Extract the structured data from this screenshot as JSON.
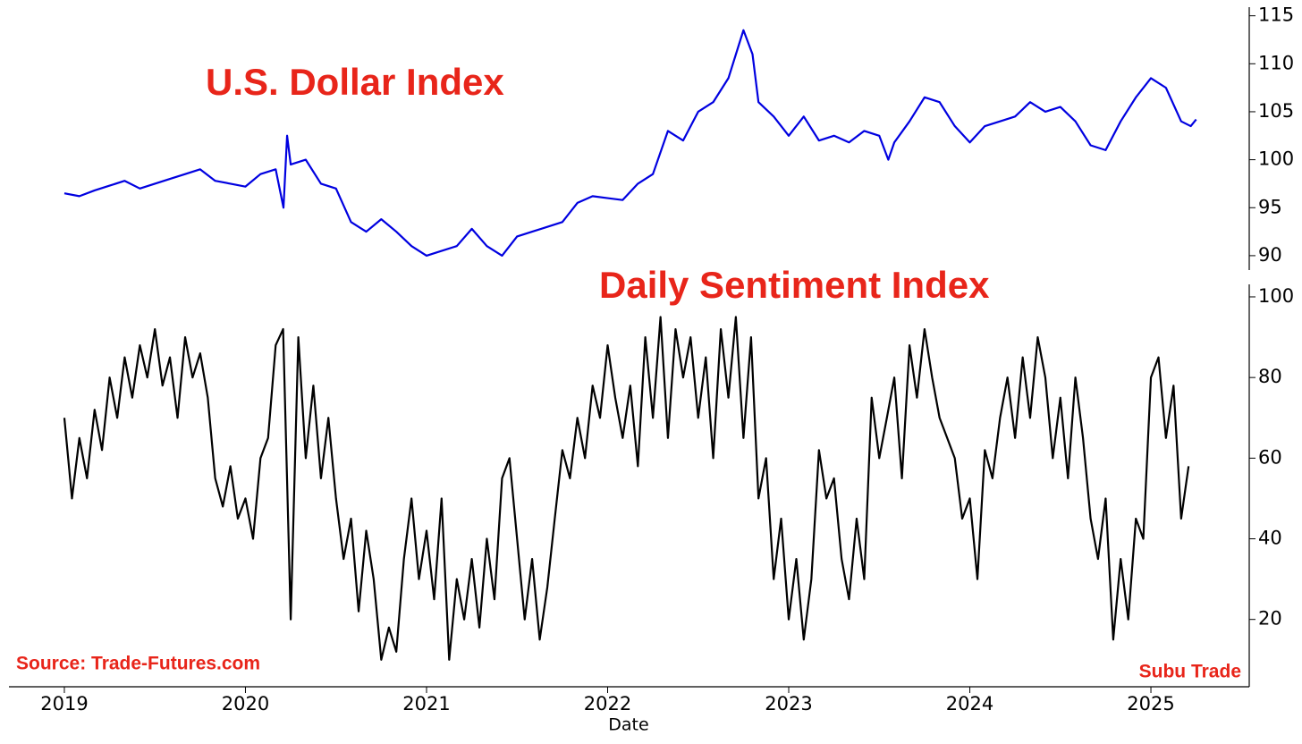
{
  "chart_data": [
    {
      "type": "line",
      "title": "U.S. Dollar Index",
      "color": "#0000e0",
      "x": [
        2019.0,
        2019.083,
        2019.167,
        2019.25,
        2019.333,
        2019.417,
        2019.5,
        2019.583,
        2019.667,
        2019.75,
        2019.833,
        2019.917,
        2020.0,
        2020.083,
        2020.167,
        2020.21,
        2020.23,
        2020.25,
        2020.333,
        2020.417,
        2020.5,
        2020.583,
        2020.667,
        2020.75,
        2020.833,
        2020.917,
        2021.0,
        2021.083,
        2021.167,
        2021.25,
        2021.333,
        2021.417,
        2021.5,
        2021.583,
        2021.667,
        2021.75,
        2021.833,
        2021.917,
        2022.0,
        2022.083,
        2022.167,
        2022.25,
        2022.333,
        2022.417,
        2022.5,
        2022.583,
        2022.667,
        2022.75,
        2022.8,
        2022.833,
        2022.917,
        2023.0,
        2023.083,
        2023.167,
        2023.25,
        2023.333,
        2023.417,
        2023.5,
        2023.55,
        2023.583,
        2023.667,
        2023.75,
        2023.833,
        2023.917,
        2024.0,
        2024.083,
        2024.167,
        2024.25,
        2024.333,
        2024.417,
        2024.5,
        2024.583,
        2024.667,
        2024.75,
        2024.833,
        2024.917,
        2025.0,
        2025.083,
        2025.167,
        2025.22,
        2025.25
      ],
      "values": [
        96.5,
        96.2,
        96.8,
        97.3,
        97.8,
        97.0,
        97.5,
        98.0,
        98.5,
        99.0,
        97.8,
        97.5,
        97.2,
        98.5,
        99.0,
        95.0,
        102.5,
        99.5,
        100.0,
        97.5,
        97.0,
        93.5,
        92.5,
        93.8,
        92.5,
        91.0,
        90.0,
        90.5,
        91.0,
        92.8,
        91.0,
        90.0,
        92.0,
        92.5,
        93.0,
        93.5,
        95.5,
        96.2,
        96.0,
        95.8,
        97.5,
        98.5,
        103.0,
        102.0,
        105.0,
        106.0,
        108.5,
        113.5,
        111.0,
        106.0,
        104.5,
        102.5,
        104.5,
        102.0,
        102.5,
        101.8,
        103.0,
        102.5,
        100.0,
        101.8,
        104.0,
        106.5,
        106.0,
        103.5,
        101.8,
        103.5,
        104.0,
        104.5,
        106.0,
        105.0,
        105.5,
        104.0,
        101.5,
        101.0,
        104.0,
        106.5,
        108.5,
        107.5,
        104.0,
        103.5,
        104.2
      ],
      "ylim": [
        88.5,
        115.9
      ],
      "yticks": [
        90,
        95,
        100,
        105,
        110,
        115
      ]
    },
    {
      "type": "line",
      "title": "Daily Sentiment Index",
      "color": "#000000",
      "source": "Source: Trade-Futures.com",
      "credit": "Subu Trade",
      "xlabel": "Date",
      "x": [
        2019.0,
        2019.042,
        2019.083,
        2019.125,
        2019.167,
        2019.208,
        2019.25,
        2019.292,
        2019.333,
        2019.375,
        2019.417,
        2019.458,
        2019.5,
        2019.542,
        2019.583,
        2019.625,
        2019.667,
        2019.708,
        2019.75,
        2019.792,
        2019.833,
        2019.875,
        2019.917,
        2019.958,
        2020.0,
        2020.042,
        2020.083,
        2020.125,
        2020.167,
        2020.208,
        2020.25,
        2020.292,
        2020.333,
        2020.375,
        2020.417,
        2020.458,
        2020.5,
        2020.542,
        2020.583,
        2020.625,
        2020.667,
        2020.708,
        2020.75,
        2020.792,
        2020.833,
        2020.875,
        2020.917,
        2020.958,
        2021.0,
        2021.042,
        2021.083,
        2021.125,
        2021.167,
        2021.208,
        2021.25,
        2021.292,
        2021.333,
        2021.375,
        2021.417,
        2021.458,
        2021.5,
        2021.542,
        2021.583,
        2021.625,
        2021.667,
        2021.708,
        2021.75,
        2021.792,
        2021.833,
        2021.875,
        2021.917,
        2021.958,
        2022.0,
        2022.042,
        2022.083,
        2022.125,
        2022.167,
        2022.208,
        2022.25,
        2022.292,
        2022.333,
        2022.375,
        2022.417,
        2022.458,
        2022.5,
        2022.542,
        2022.583,
        2022.625,
        2022.667,
        2022.708,
        2022.75,
        2022.792,
        2022.833,
        2022.875,
        2022.917,
        2022.958,
        2023.0,
        2023.042,
        2023.083,
        2023.125,
        2023.167,
        2023.208,
        2023.25,
        2023.292,
        2023.333,
        2023.375,
        2023.417,
        2023.458,
        2023.5,
        2023.542,
        2023.583,
        2023.625,
        2023.667,
        2023.708,
        2023.75,
        2023.792,
        2023.833,
        2023.875,
        2023.917,
        2023.958,
        2024.0,
        2024.042,
        2024.083,
        2024.125,
        2024.167,
        2024.208,
        2024.25,
        2024.292,
        2024.333,
        2024.375,
        2024.417,
        2024.458,
        2024.5,
        2024.542,
        2024.583,
        2024.625,
        2024.667,
        2024.708,
        2024.75,
        2024.792,
        2024.833,
        2024.875,
        2024.917,
        2024.958,
        2025.0,
        2025.042,
        2025.083,
        2025.125,
        2025.167,
        2025.208
      ],
      "values": [
        70,
        50,
        65,
        55,
        72,
        62,
        80,
        70,
        85,
        75,
        88,
        80,
        92,
        78,
        85,
        70,
        90,
        80,
        86,
        75,
        55,
        48,
        58,
        45,
        50,
        40,
        60,
        65,
        88,
        92,
        20,
        90,
        60,
        78,
        55,
        70,
        50,
        35,
        45,
        22,
        42,
        30,
        10,
        18,
        12,
        35,
        50,
        30,
        42,
        25,
        50,
        10,
        30,
        20,
        35,
        18,
        40,
        25,
        55,
        60,
        40,
        20,
        35,
        15,
        28,
        45,
        62,
        55,
        70,
        60,
        78,
        70,
        88,
        75,
        65,
        78,
        58,
        90,
        70,
        95,
        65,
        92,
        80,
        90,
        70,
        85,
        60,
        92,
        75,
        95,
        65,
        90,
        50,
        60,
        30,
        45,
        20,
        35,
        15,
        30,
        62,
        50,
        55,
        35,
        25,
        45,
        30,
        75,
        60,
        70,
        80,
        55,
        88,
        75,
        92,
        80,
        70,
        65,
        60,
        45,
        50,
        30,
        62,
        55,
        70,
        80,
        65,
        85,
        70,
        90,
        80,
        60,
        75,
        55,
        80,
        65,
        45,
        35,
        50,
        15,
        35,
        20,
        45,
        40,
        80,
        85,
        65,
        78,
        45,
        58
      ],
      "xlim": [
        2018.694,
        2025.543
      ],
      "xticks": [
        2019,
        2020,
        2021,
        2022,
        2023,
        2024,
        2025
      ],
      "ylim": [
        3.3,
        103.1
      ],
      "yticks": [
        20,
        40,
        60,
        80,
        100
      ]
    }
  ]
}
